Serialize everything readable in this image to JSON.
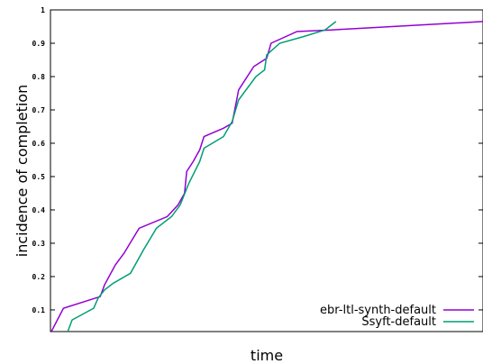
{
  "chart_data": {
    "type": "line",
    "title": "",
    "xlabel": "time",
    "ylabel": "incidence of completion",
    "xlim": [
      0,
      1
    ],
    "ylim": [
      0.035,
      1
    ],
    "yticks": [
      "0.1",
      "0.2",
      "0.3",
      "0.4",
      "0.5",
      "0.6",
      "0.7",
      "0.8",
      "0.9",
      "1"
    ],
    "grid": false,
    "legend_position": "bottom-right",
    "series": [
      {
        "name": "ebr-ltl-synth-default",
        "color": "#9400d3",
        "points": [
          [
            0.002,
            0.035
          ],
          [
            0.03,
            0.105
          ],
          [
            0.115,
            0.14
          ],
          [
            0.125,
            0.175
          ],
          [
            0.15,
            0.235
          ],
          [
            0.17,
            0.27
          ],
          [
            0.205,
            0.345
          ],
          [
            0.27,
            0.38
          ],
          [
            0.295,
            0.415
          ],
          [
            0.31,
            0.45
          ],
          [
            0.315,
            0.515
          ],
          [
            0.33,
            0.545
          ],
          [
            0.345,
            0.58
          ],
          [
            0.355,
            0.62
          ],
          [
            0.4,
            0.645
          ],
          [
            0.42,
            0.66
          ],
          [
            0.435,
            0.76
          ],
          [
            0.47,
            0.83
          ],
          [
            0.5,
            0.855
          ],
          [
            0.51,
            0.9
          ],
          [
            0.57,
            0.935
          ],
          [
            0.65,
            0.94
          ],
          [
            1.0,
            0.965
          ]
        ]
      },
      {
        "name": "Ssyft-default",
        "color": "#009e73",
        "points": [
          [
            0.04,
            0.035
          ],
          [
            0.05,
            0.07
          ],
          [
            0.1,
            0.105
          ],
          [
            0.11,
            0.135
          ],
          [
            0.125,
            0.16
          ],
          [
            0.145,
            0.18
          ],
          [
            0.185,
            0.21
          ],
          [
            0.215,
            0.28
          ],
          [
            0.245,
            0.345
          ],
          [
            0.28,
            0.38
          ],
          [
            0.3,
            0.415
          ],
          [
            0.32,
            0.48
          ],
          [
            0.345,
            0.545
          ],
          [
            0.355,
            0.585
          ],
          [
            0.4,
            0.62
          ],
          [
            0.42,
            0.665
          ],
          [
            0.435,
            0.73
          ],
          [
            0.475,
            0.8
          ],
          [
            0.495,
            0.82
          ],
          [
            0.5,
            0.865
          ],
          [
            0.53,
            0.9
          ],
          [
            0.585,
            0.92
          ],
          [
            0.635,
            0.94
          ],
          [
            0.66,
            0.965
          ]
        ]
      }
    ]
  }
}
